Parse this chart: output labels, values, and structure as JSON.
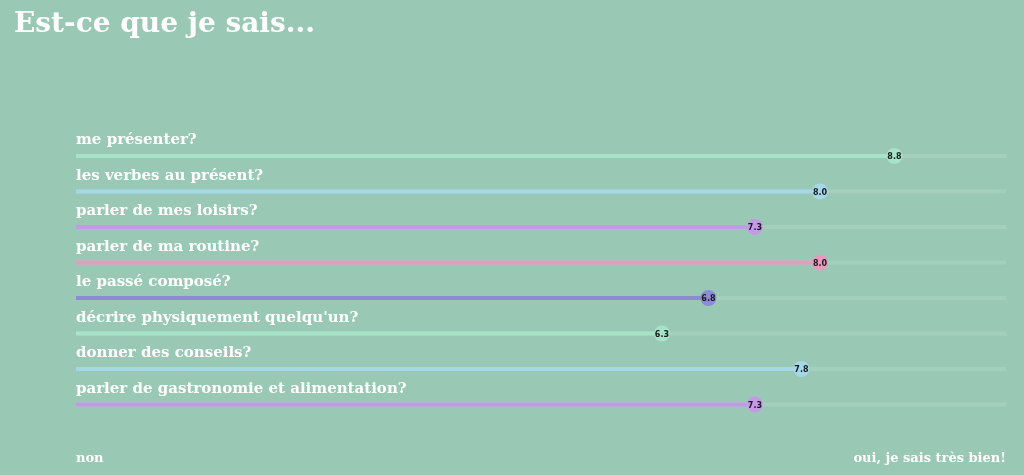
{
  "chart_data": {
    "type": "lollipop",
    "orientation": "horizontal",
    "title": "Est-ce que je sais...",
    "categories": [
      "me présenter?",
      "les verbes au présent?",
      "parler de mes loisirs?",
      "parler de ma routine?",
      "le passé composé?",
      "décrire physiquement quelqu'un?",
      "donner des conseils?",
      "parler de gastronomie et alimentation?"
    ],
    "values": [
      8.8,
      8.0,
      7.3,
      8.0,
      6.8,
      6.3,
      7.8,
      7.3
    ],
    "colors": [
      "#a6e3c8",
      "#a4d8e8",
      "#c49ae8",
      "#e79ac0",
      "#8c8cd6",
      "#a6e3c8",
      "#a4d8e8",
      "#c49ae8"
    ],
    "value_labels": [
      "8.8",
      "8.0",
      "7.3",
      "8.0",
      "6.8",
      "6.3",
      "7.8",
      "7.3"
    ],
    "xlim": [
      0,
      10
    ],
    "grid": true,
    "annotations": [
      "non",
      "oui, je sais très bien!"
    ]
  }
}
